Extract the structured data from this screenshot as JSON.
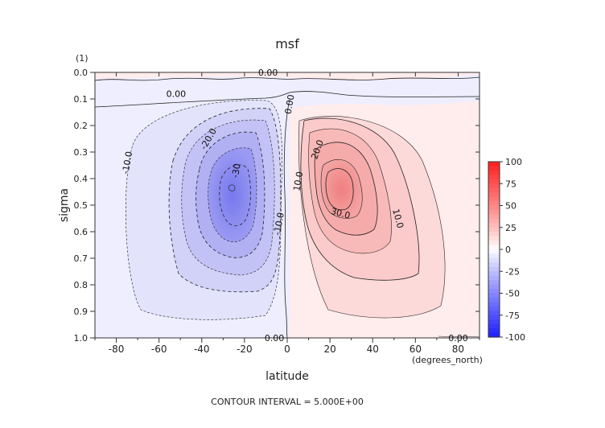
{
  "chart_data": {
    "type": "heatmap",
    "title": "msf",
    "unit_label": "(1)",
    "xlabel": "latitude",
    "ylabel": "sigma",
    "x_units": "(degrees_north)",
    "footer": "CONTOUR INTERVAL = 5.000E+00",
    "xlim": [
      -90,
      90
    ],
    "ylim": [
      1.0,
      0.0
    ],
    "y_inverted": true,
    "x_ticks": [
      -80,
      -60,
      -40,
      -20,
      0,
      20,
      40,
      60,
      80
    ],
    "x_tick_labels": [
      "-80",
      "-60",
      "-40",
      "-20",
      "0",
      "20",
      "40",
      "60",
      "80"
    ],
    "y_ticks": [
      0.0,
      0.1,
      0.2,
      0.3,
      0.4,
      0.5,
      0.6,
      0.7,
      0.8,
      0.9,
      1.0
    ],
    "y_tick_labels": [
      "0.0",
      "0.1",
      "0.2",
      "0.3",
      "0.4",
      "0.5",
      "0.6",
      "0.7",
      "0.8",
      "0.9",
      "1.0"
    ],
    "contour_interval": 5.0,
    "cells": [
      {
        "lat": -25,
        "sigma": 0.43,
        "value": -35,
        "label": "-30"
      },
      {
        "lat": 25,
        "sigma": 0.42,
        "value": 35,
        "label": "30.0"
      }
    ],
    "contour_labels": [
      {
        "text": "0.00",
        "lat": -9,
        "sigma": 0.0
      },
      {
        "text": "0.00",
        "lat": -52,
        "sigma": 0.08
      },
      {
        "text": "0.00",
        "lat": 1,
        "sigma": 0.12
      },
      {
        "text": "-10.0",
        "lat": -75,
        "sigma": 0.34
      },
      {
        "text": "-20.0",
        "lat": -37,
        "sigma": 0.25
      },
      {
        "text": "-30",
        "lat": -24,
        "sigma": 0.37
      },
      {
        "text": "-10.0",
        "lat": -4,
        "sigma": 0.57
      },
      {
        "text": "20.0",
        "lat": 14,
        "sigma": 0.29
      },
      {
        "text": "10.0",
        "lat": 5,
        "sigma": 0.41
      },
      {
        "text": "30.0",
        "lat": 25,
        "sigma": 0.53
      },
      {
        "text": "10.0",
        "lat": 52,
        "sigma": 0.55
      },
      {
        "text": "0.00",
        "lat": -6,
        "sigma": 1.0
      },
      {
        "text": "0.00",
        "lat": 80,
        "sigma": 1.0
      }
    ],
    "colorbar": {
      "ticks": [
        100,
        75,
        50,
        25,
        0,
        -25,
        -50,
        -75,
        -100
      ],
      "tick_labels": [
        "100",
        "75",
        "50",
        "25",
        "0",
        "-25",
        "-50",
        "-75",
        "-100"
      ],
      "colors": {
        "low": "#1f1fff",
        "mid": "#ffffff",
        "high": "#ff1f1f"
      }
    },
    "grid": false,
    "legend": "right-colorbar"
  }
}
